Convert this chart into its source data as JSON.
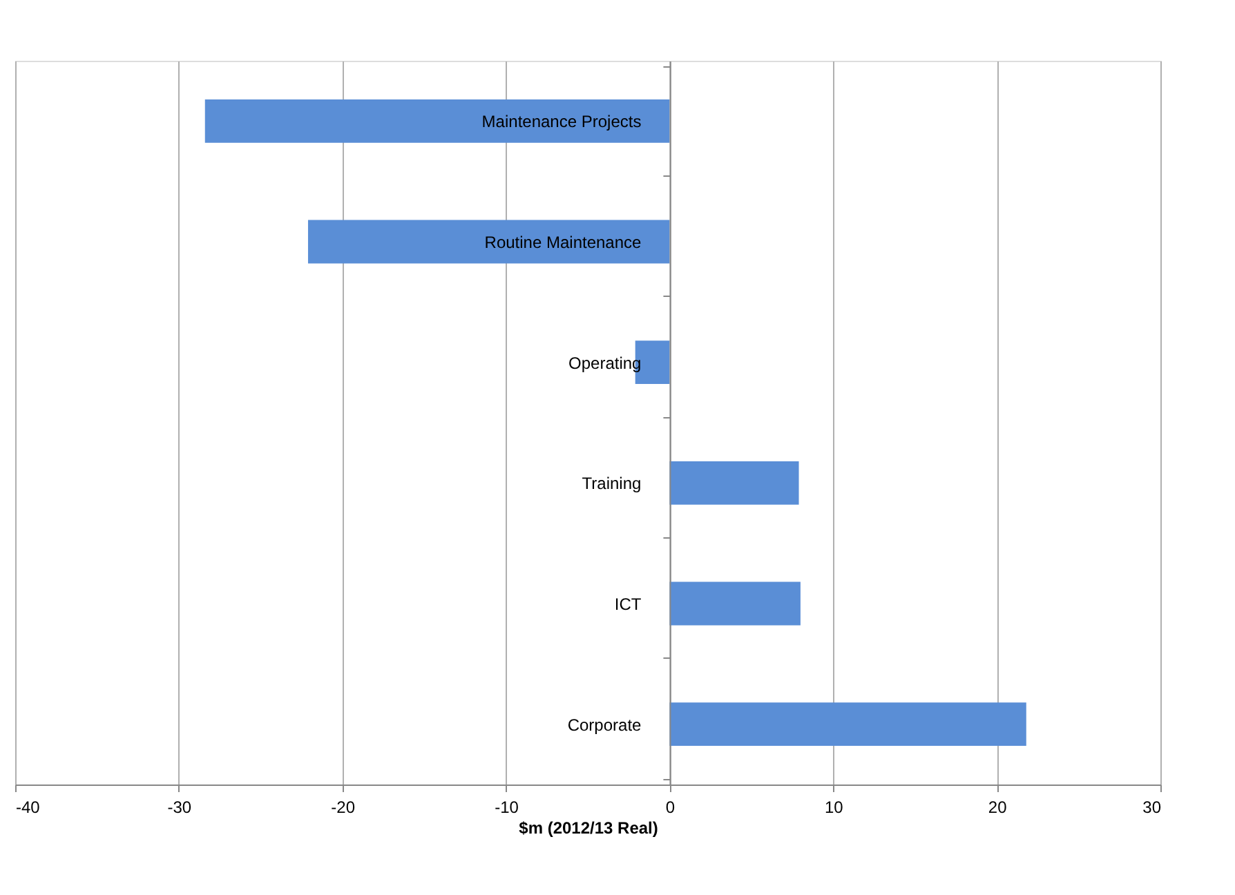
{
  "chart_data": {
    "type": "bar",
    "orientation": "horizontal",
    "xlabel": "$m (2012/13 Real)",
    "categories": [
      "Maintenance Projects",
      "Routine Maintenance",
      "Operating",
      "Training",
      "ICT",
      "Corporate"
    ],
    "values": [
      -28.4,
      -22.1,
      -2.1,
      7.9,
      8.0,
      21.8
    ],
    "color": "#5a8ed6",
    "xlim": [
      -40,
      30
    ],
    "xticks": [
      -40,
      -30,
      -20,
      -10,
      0,
      10,
      20,
      30
    ],
    "grid": "x"
  }
}
